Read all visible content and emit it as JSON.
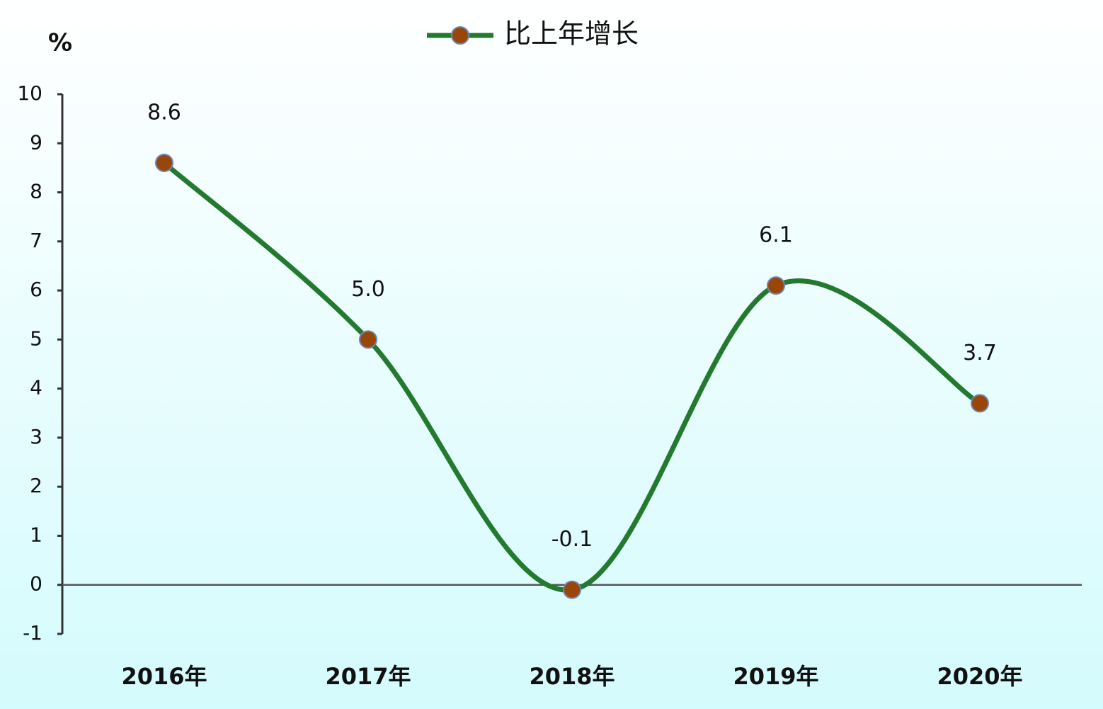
{
  "chart_data": {
    "type": "line",
    "y_axis_label": "%",
    "categories": [
      "2016年",
      "2017年",
      "2018年",
      "2019年",
      "2020年"
    ],
    "series": [
      {
        "name": "比上年增长",
        "color": "#237a2f",
        "marker_color": "#9a4608",
        "values": [
          8.6,
          5.0,
          -0.1,
          6.1,
          3.7
        ],
        "value_labels": [
          "8.6",
          "5.0",
          "-0.1",
          "6.1",
          "3.7"
        ]
      }
    ],
    "ylim": [
      -1,
      10
    ],
    "yticks": [
      -1,
      0,
      1,
      2,
      3,
      4,
      5,
      6,
      7,
      8,
      9,
      10
    ],
    "smooth": true,
    "legend": "top"
  }
}
